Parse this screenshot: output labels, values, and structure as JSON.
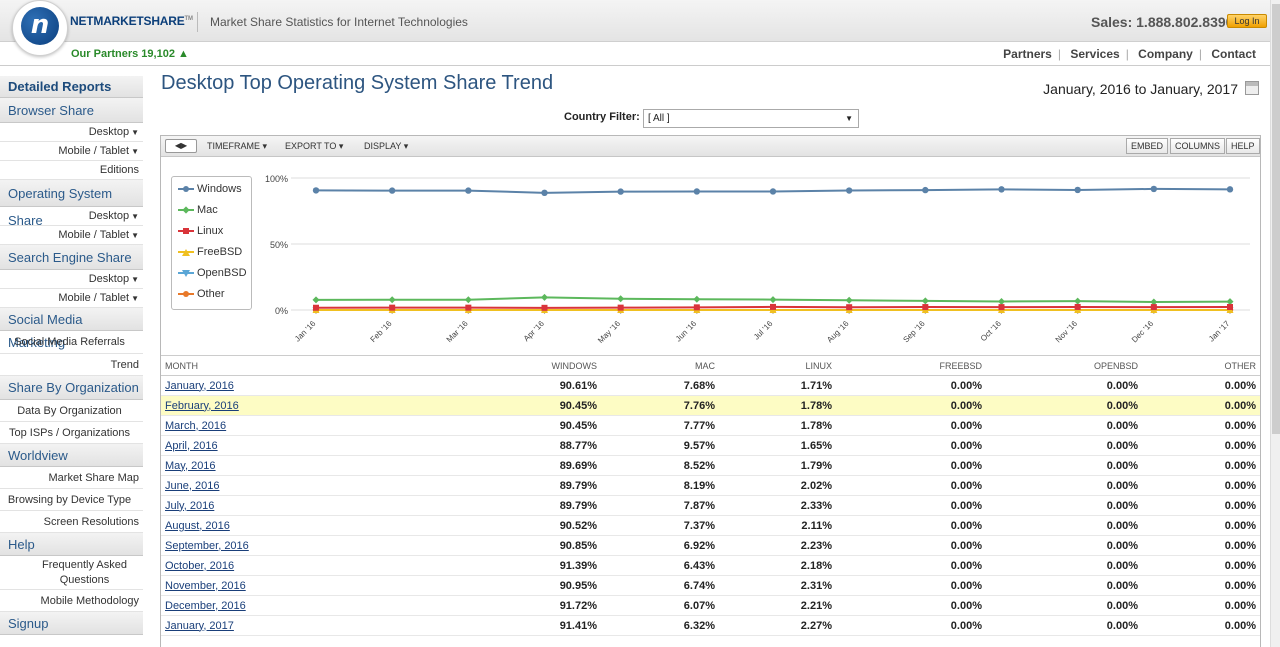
{
  "header": {
    "brand": "NETMARKETSHARE",
    "brand_tm": "TM",
    "tagline": "Market Share Statistics for Internet Technologies",
    "sales": "Sales: 1.888.802.8390",
    "login_label": "Log In",
    "partners_count": "Our Partners 19,102 ▲",
    "nav": [
      "Partners",
      "Services",
      "Company",
      "Contact"
    ]
  },
  "sidebar": {
    "detailed_reports": "Detailed Reports",
    "browser_share": "Browser Share",
    "browser_desktop": "Desktop",
    "browser_mobile": "Mobile / Tablet",
    "browser_editions": "Editions",
    "os_share": "Operating System Share",
    "os_desktop": "Desktop",
    "os_mobile": "Mobile / Tablet",
    "search_share": "Search Engine Share",
    "search_desktop": "Desktop",
    "search_mobile": "Mobile / Tablet",
    "social": "Social Media Marketing",
    "social_referrals": "Social Media Referrals",
    "social_trend": "Trend",
    "share_org": "Share By Organization",
    "data_org": "Data By Organization",
    "top_isps": "Top ISPs / Organizations",
    "worldview": "Worldview",
    "market_map": "Market Share Map",
    "browsing_device": "Browsing by Device Type",
    "screen_res": "Screen Resolutions",
    "help": "Help",
    "faq": "Frequently Asked Questions",
    "mobile_method": "Mobile Methodology",
    "signup": "Signup"
  },
  "main": {
    "title": "Desktop Top Operating System Share Trend",
    "date_range": "January, 2016 to January, 2017",
    "filter_label": "Country Filter:",
    "filter_value": "[ All ]"
  },
  "toolbar": {
    "timeframe": "TIMEFRAME",
    "export": "EXPORT TO",
    "display": "DISPLAY",
    "embed": "EMBED",
    "columns": "COLUMNS",
    "help": "HELP"
  },
  "chart_data": {
    "type": "line",
    "x": [
      "Jan '16",
      "Feb '16",
      "Mar '16",
      "Apr '16",
      "May '16",
      "Jun '16",
      "Jul '16",
      "Aug '16",
      "Sep '16",
      "Oct '16",
      "Nov '16",
      "Dec '16",
      "Jan '17"
    ],
    "y_ticks": [
      "100%",
      "50%",
      "0%"
    ],
    "ylim": [
      0,
      100
    ],
    "grid": true,
    "legend_position": "top-left",
    "series": [
      {
        "name": "Windows",
        "color": "#5b82a8",
        "marker": "circle",
        "values": [
          90.61,
          90.45,
          90.45,
          88.77,
          89.69,
          89.79,
          89.79,
          90.52,
          90.85,
          91.39,
          90.95,
          91.72,
          91.41
        ]
      },
      {
        "name": "Mac",
        "color": "#5cb85c",
        "marker": "diamond",
        "values": [
          7.68,
          7.76,
          7.77,
          9.57,
          8.52,
          8.19,
          7.87,
          7.37,
          6.92,
          6.43,
          6.74,
          6.07,
          6.32
        ]
      },
      {
        "name": "Linux",
        "color": "#d9343a",
        "marker": "square",
        "values": [
          1.71,
          1.78,
          1.78,
          1.65,
          1.79,
          2.02,
          2.33,
          2.11,
          2.23,
          2.18,
          2.31,
          2.21,
          2.27
        ]
      },
      {
        "name": "FreeBSD",
        "color": "#f0c020",
        "marker": "triangle-up",
        "values": [
          0,
          0,
          0,
          0,
          0,
          0,
          0,
          0,
          0,
          0,
          0,
          0,
          0
        ]
      },
      {
        "name": "OpenBSD",
        "color": "#5aa6d6",
        "marker": "triangle-down",
        "values": [
          0,
          0,
          0,
          0,
          0,
          0,
          0,
          0,
          0,
          0,
          0,
          0,
          0
        ]
      },
      {
        "name": "Other",
        "color": "#e8792a",
        "marker": "circle",
        "values": [
          0,
          0,
          0,
          0,
          0,
          0,
          0,
          0,
          0,
          0,
          0,
          0,
          0
        ]
      }
    ]
  },
  "table": {
    "headers": [
      "MONTH",
      "WINDOWS",
      "MAC",
      "LINUX",
      "FREEBSD",
      "OPENBSD",
      "OTHER"
    ],
    "rows": [
      [
        "January, 2016",
        "90.61%",
        "7.68%",
        "1.71%",
        "0.00%",
        "0.00%",
        "0.00%"
      ],
      [
        "February, 2016",
        "90.45%",
        "7.76%",
        "1.78%",
        "0.00%",
        "0.00%",
        "0.00%"
      ],
      [
        "March, 2016",
        "90.45%",
        "7.77%",
        "1.78%",
        "0.00%",
        "0.00%",
        "0.00%"
      ],
      [
        "April, 2016",
        "88.77%",
        "9.57%",
        "1.65%",
        "0.00%",
        "0.00%",
        "0.00%"
      ],
      [
        "May, 2016",
        "89.69%",
        "8.52%",
        "1.79%",
        "0.00%",
        "0.00%",
        "0.00%"
      ],
      [
        "June, 2016",
        "89.79%",
        "8.19%",
        "2.02%",
        "0.00%",
        "0.00%",
        "0.00%"
      ],
      [
        "July, 2016",
        "89.79%",
        "7.87%",
        "2.33%",
        "0.00%",
        "0.00%",
        "0.00%"
      ],
      [
        "August, 2016",
        "90.52%",
        "7.37%",
        "2.11%",
        "0.00%",
        "0.00%",
        "0.00%"
      ],
      [
        "September, 2016",
        "90.85%",
        "6.92%",
        "2.23%",
        "0.00%",
        "0.00%",
        "0.00%"
      ],
      [
        "October, 2016",
        "91.39%",
        "6.43%",
        "2.18%",
        "0.00%",
        "0.00%",
        "0.00%"
      ],
      [
        "November, 2016",
        "90.95%",
        "6.74%",
        "2.31%",
        "0.00%",
        "0.00%",
        "0.00%"
      ],
      [
        "December, 2016",
        "91.72%",
        "6.07%",
        "2.21%",
        "0.00%",
        "0.00%",
        "0.00%"
      ],
      [
        "January, 2017",
        "91.41%",
        "6.32%",
        "2.27%",
        "0.00%",
        "0.00%",
        "0.00%"
      ]
    ],
    "highlighted_row": 1
  }
}
